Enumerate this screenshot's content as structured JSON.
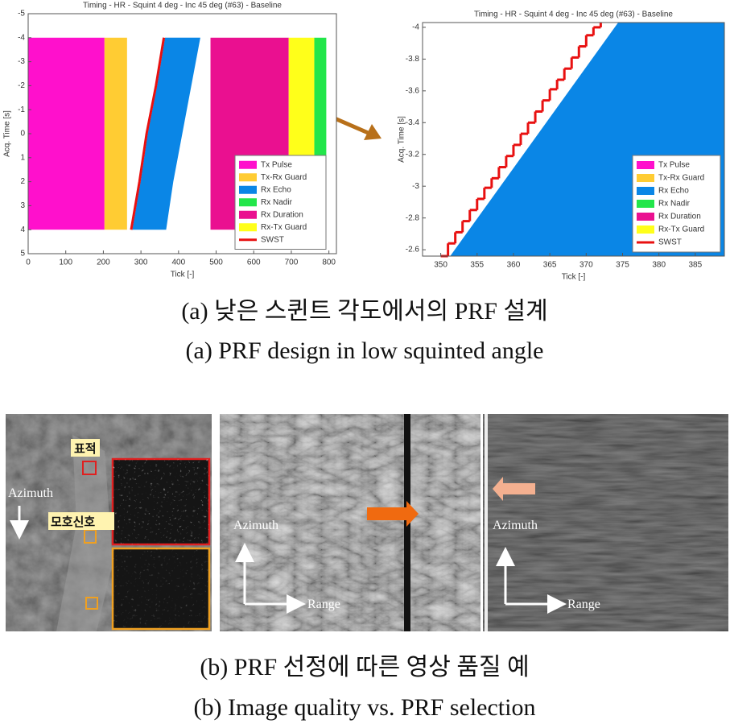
{
  "chart_data": [
    {
      "type": "timing",
      "title": "Timing - HR - Squint 4 deg - Inc 45 deg (#63) - Baseline",
      "xlabel": "Tick [-]",
      "ylabel": "Acq. Time [s]",
      "xlim": [
        0,
        820
      ],
      "ylim": [
        -5,
        5
      ],
      "xticks": [
        0,
        100,
        200,
        300,
        400,
        500,
        600,
        700,
        800
      ],
      "yticks": [
        -5,
        -4,
        -3,
        -2,
        -1,
        0,
        1,
        2,
        3,
        4,
        5
      ],
      "series": [
        {
          "name": "Tx Pulse",
          "color": "#ff10cc",
          "x": [
            0,
            203
          ],
          "y": [
            -4,
            4
          ]
        },
        {
          "name": "Tx-Rx Guard",
          "color": "#ffcc33",
          "x": [
            203,
            263
          ],
          "y": [
            -4,
            4
          ]
        },
        {
          "name": "Rx Echo",
          "color": "#0a86e6",
          "y": [
            4,
            2,
            0,
            -2,
            -4
          ],
          "x_left": [
            277,
            299,
            318,
            343,
            364
          ],
          "x_right": [
            367,
            386,
            410,
            434,
            458
          ]
        },
        {
          "name": "Rx Nadir",
          "color": "#22e64a",
          "x": [
            761,
            793
          ],
          "y": [
            -4,
            4
          ]
        },
        {
          "name": "Rx Duration",
          "color": "#ea1090",
          "x": [
            485,
            693
          ],
          "y": [
            -4,
            4
          ]
        },
        {
          "name": "Rx-Tx Guard",
          "color": "#ffff1a",
          "x": [
            693,
            761
          ],
          "y": [
            -4,
            4
          ]
        },
        {
          "name": "SWST",
          "color": "#e81010",
          "x": [
            274,
            296,
            315,
            340,
            361
          ],
          "y": [
            4,
            2,
            0,
            -2,
            -4
          ]
        }
      ]
    },
    {
      "type": "timing",
      "title": "Timing - HR - Squint 4 deg - Inc 45 deg (#63) - Baseline",
      "xlabel": "Tick [-]",
      "ylabel": "Acq. Time [s]",
      "xlim": [
        347.5,
        389
      ],
      "ylim": [
        -4.03,
        -2.56
      ],
      "xticks": [
        350,
        355,
        360,
        365,
        370,
        375,
        380,
        385
      ],
      "yticks": [
        -4,
        -3.8,
        -3.6,
        -3.4,
        -3.2,
        -3,
        -2.8,
        -2.6
      ],
      "series": [
        {
          "name": "Tx Pulse",
          "color": "#ff10cc"
        },
        {
          "name": "Tx-Rx Guard",
          "color": "#ffcc33"
        },
        {
          "name": "Rx Echo",
          "color": "#0a86e6",
          "y": [
            -2.56,
            -4.03,
            -4.03,
            -2.56
          ],
          "x_left": [
            351.3,
            374.4,
            389,
            389
          ]
        },
        {
          "name": "Rx Nadir",
          "color": "#22e64a"
        },
        {
          "name": "Rx Duration",
          "color": "#ea1090"
        },
        {
          "name": "Rx-Tx Guard",
          "color": "#ffff1a"
        },
        {
          "name": "SWST",
          "color": "#e81010",
          "step": true,
          "x": [
            350,
            351,
            352,
            353,
            354,
            355,
            356,
            357,
            358,
            359,
            360,
            361,
            362,
            363,
            364,
            365,
            366,
            367,
            368,
            369,
            370,
            371,
            372
          ],
          "y": [
            -2.56,
            -2.64,
            -2.71,
            -2.78,
            -2.85,
            -2.92,
            -2.99,
            -3.05,
            -3.12,
            -3.19,
            -3.26,
            -3.33,
            -3.4,
            -3.47,
            -3.54,
            -3.61,
            -3.67,
            -3.74,
            -3.81,
            -3.88,
            -3.95,
            -4.0,
            -4.03
          ]
        }
      ]
    }
  ],
  "captions": {
    "a_ko": "(a) 낮은 스퀸트 각도에서의 PRF 설계",
    "a_en": "(a) PRF design in low squinted angle",
    "b_ko": "(b) PRF 선정에 따른 영상 품질 예",
    "b_en": "(b) Image quality vs. PRF selection"
  },
  "images": [
    {
      "labels": [
        "표적",
        "모호신호",
        "Azimuth"
      ]
    },
    {
      "labels": [
        "Azimuth",
        "Range"
      ]
    },
    {
      "labels": [
        "Azimuth",
        "Range"
      ]
    }
  ]
}
